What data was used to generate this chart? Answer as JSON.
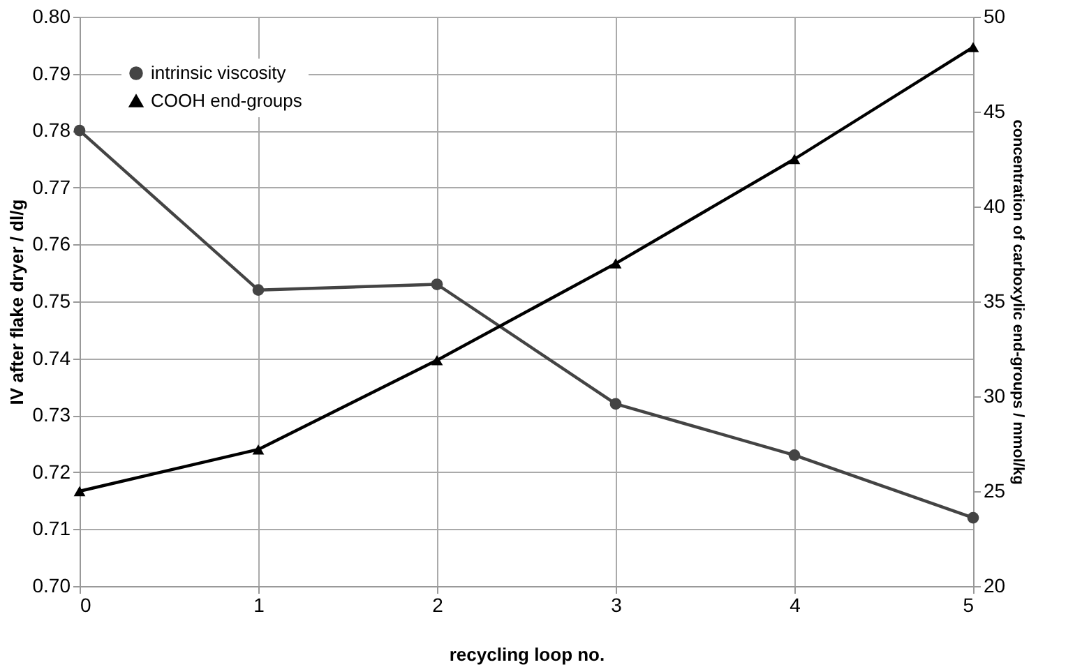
{
  "chart_data": {
    "type": "line",
    "xlabel": "recycling loop no.",
    "ylabel": "IV after flake dryer / dl/g",
    "y2label": "concentration of carboxylic end-groups / mmol/kg",
    "x": [
      0,
      1,
      2,
      3,
      4,
      5
    ],
    "series": [
      {
        "name": "intrinsic viscosity",
        "color": "#444444",
        "marker": "circle",
        "values": [
          0.78,
          0.752,
          0.753,
          0.732,
          0.723,
          0.712
        ]
      },
      {
        "name": "COOH end-groups",
        "color": "#000000",
        "marker": "triangle",
        "axis": "y2",
        "values": [
          25.0,
          27.2,
          31.9,
          37.0,
          42.5,
          48.4
        ]
      }
    ],
    "xlim": [
      0,
      5
    ],
    "xticks": [
      0,
      1,
      2,
      3,
      4,
      5
    ],
    "ylim": [
      0.7,
      0.8
    ],
    "yticks": [
      {
        "value": 0.7,
        "label": "0.70"
      },
      0.71,
      0.72,
      0.73,
      0.74,
      0.75,
      0.76,
      0.77,
      0.78,
      0.79,
      {
        "value": 0.8,
        "label": "0.80"
      }
    ],
    "y2lim": [
      20,
      50
    ],
    "y2ticks": [
      20,
      25,
      30,
      35,
      40,
      45,
      50
    ],
    "grid": true,
    "legend": "top left",
    "line_style": "solid"
  }
}
